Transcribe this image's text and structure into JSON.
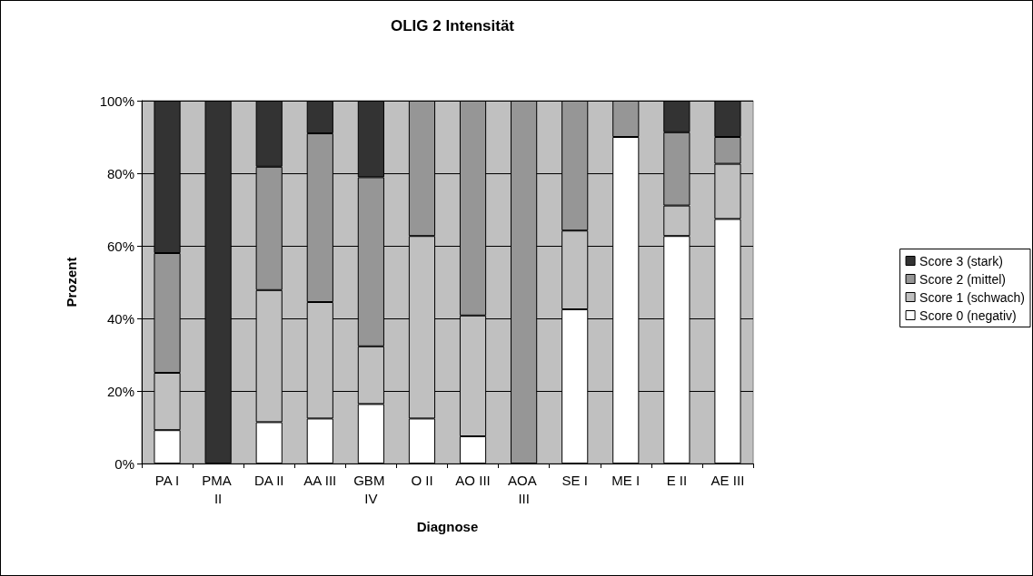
{
  "chart_data": {
    "type": "bar",
    "title": "OLIG 2 Intensität",
    "xlabel": "Diagnose",
    "ylabel": "Prozent",
    "categories": [
      "PA I",
      "PMA II",
      "DA II",
      "AA III",
      "GBM IV",
      "O II",
      "AO III",
      "AOA III",
      "SE I",
      "ME I",
      "E II",
      "AE III"
    ],
    "stacked": true,
    "series": [
      {
        "name": "Score 0 (negativ)",
        "color": "#ffffff",
        "values": [
          9.2,
          0,
          11.4,
          12.4,
          16.4,
          12.4,
          7.5,
          0,
          42.5,
          90,
          62.7,
          67.4
        ]
      },
      {
        "name": "Score 1 (schwach)",
        "color": "#c0c0c0",
        "values": [
          15.8,
          0,
          36.4,
          32.1,
          15.9,
          50.3,
          33.3,
          0,
          21.7,
          0,
          8.4,
          15.2
        ]
      },
      {
        "name": "Score 2 (mittel)",
        "color": "#969696",
        "values": [
          33,
          0,
          34,
          46.5,
          46.6,
          37.3,
          59.2,
          100,
          35.8,
          10,
          20.2,
          7.4
        ]
      },
      {
        "name": "Score 3 (stark)",
        "color": "#333333",
        "values": [
          42,
          100,
          18.2,
          9,
          21.1,
          0,
          0,
          0,
          0,
          0,
          8.7,
          10
        ]
      }
    ],
    "ylim": [
      0,
      100
    ],
    "yticks": [
      {
        "value": 0,
        "label": "0%"
      },
      {
        "value": 20,
        "label": "20%"
      },
      {
        "value": 40,
        "label": "40%"
      },
      {
        "value": 60,
        "label": "60%"
      },
      {
        "value": 80,
        "label": "80%"
      },
      {
        "value": 100,
        "label": "100%"
      }
    ],
    "grid": "y",
    "legend": "right"
  }
}
